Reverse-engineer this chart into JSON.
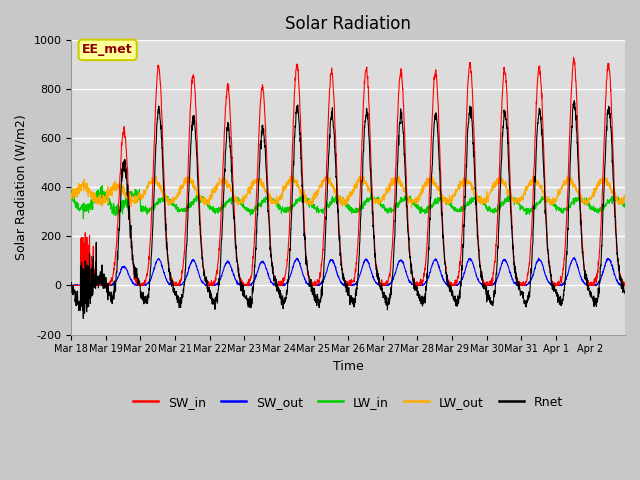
{
  "title": "Solar Radiation",
  "ylabel": "Solar Radiation (W/m2)",
  "xlabel": "Time",
  "ylim": [
    -200,
    1000
  ],
  "legend_labels": [
    "SW_in",
    "SW_out",
    "LW_in",
    "LW_out",
    "Rnet"
  ],
  "legend_colors": [
    "#ff0000",
    "#0000ff",
    "#00cc00",
    "#ffaa00",
    "#000000"
  ],
  "annotation_text": "EE_met",
  "annotation_color": "#8b0000",
  "annotation_bg": "#ffff99",
  "annotation_border": "#cccc00",
  "tick_labels": [
    "Mar 18",
    "Mar 19",
    "Mar 20",
    "Mar 21",
    "Mar 22",
    "Mar 23",
    "Mar 24",
    "Mar 25",
    "Mar 26",
    "Mar 27",
    "Mar 28",
    "Mar 29",
    "Mar 30",
    "Mar 31",
    "Apr 1",
    "Apr 2"
  ],
  "yticks": [
    -200,
    0,
    200,
    400,
    600,
    800,
    1000
  ],
  "SW_in_color": "#ff0000",
  "SW_out_color": "#0000ff",
  "LW_in_color": "#00cc00",
  "LW_out_color": "#ffaa00",
  "Rnet_color": "#000000",
  "plot_bg": "#dcdcdc",
  "fig_bg": "#c8c8c8"
}
